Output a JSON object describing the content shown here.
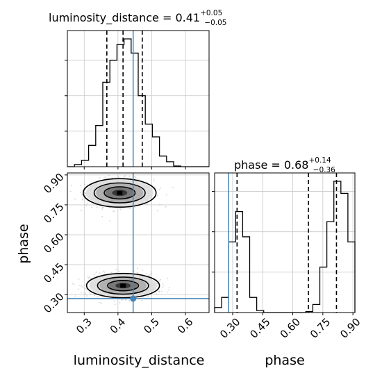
{
  "chart_data": {
    "type": "corner",
    "parameters": [
      "luminosity_distance",
      "phase"
    ],
    "colors": {
      "truth": "#4682b4",
      "hist": "#000000",
      "grid": "#c8c8c8",
      "samples": "#a0a0a0"
    },
    "grid": true,
    "xlim": {
      "luminosity_distance": [
        0.25,
        0.67
      ],
      "phase": [
        0.21,
        0.91
      ]
    },
    "ylim": {
      "phase": [
        0.21,
        0.91
      ]
    },
    "truth": {
      "luminosity_distance": 0.445,
      "phase": 0.28
    },
    "titles": {
      "luminosity_distance": {
        "prefix": "luminosity_distance = 0.41",
        "plus": "+0.05",
        "minus": "−0.05"
      },
      "phase": {
        "prefix": "phase = 0.68",
        "plus": "+0.14",
        "minus": "−0.36"
      }
    },
    "xlabels": {
      "luminosity_distance": "luminosity_distance",
      "phase": "phase"
    },
    "ylabels": {
      "phase": "phase"
    },
    "ticks": {
      "luminosity_distance": [
        "0.3",
        "0.4",
        "0.5",
        "0.6"
      ],
      "phase": [
        "0.30",
        "0.45",
        "0.60",
        "0.75",
        "0.90"
      ]
    },
    "marginals": {
      "luminosity_distance": {
        "bin_edges": [
          0.25,
          0.271,
          0.292,
          0.313,
          0.334,
          0.355,
          0.376,
          0.397,
          0.418,
          0.439,
          0.46,
          0.481,
          0.502,
          0.523,
          0.544,
          0.565,
          0.586,
          0.607,
          0.628,
          0.649,
          0.67
        ],
        "counts": [
          0,
          3,
          9,
          30,
          58,
          119,
          150,
          172,
          180,
          160,
          100,
          60,
          42,
          15,
          7,
          1,
          0,
          0,
          0,
          0
        ],
        "quantiles": [
          0.367,
          0.415,
          0.472
        ]
      },
      "phase": {
        "bin_edges": [
          0.21,
          0.245,
          0.28,
          0.315,
          0.35,
          0.385,
          0.42,
          0.455,
          0.49,
          0.525,
          0.56,
          0.595,
          0.63,
          0.665,
          0.7,
          0.735,
          0.77,
          0.805,
          0.84,
          0.875,
          0.91
        ],
        "counts": [
          5,
          15,
          70,
          100,
          75,
          15,
          2,
          0,
          0,
          0,
          0,
          0,
          0,
          1,
          8,
          45,
          90,
          130,
          118,
          70
        ],
        "quantiles": [
          0.322,
          0.678,
          0.818
        ]
      }
    },
    "joint": {
      "modes": [
        {
          "x": 0.405,
          "y": 0.81,
          "sx": 0.05,
          "sy": 0.035,
          "weight": 0.5
        },
        {
          "x": 0.415,
          "y": 0.345,
          "sx": 0.05,
          "sy": 0.03,
          "weight": 0.5
        }
      ],
      "contour_levels": [
        0.39,
        0.86,
        1.5
      ]
    }
  }
}
